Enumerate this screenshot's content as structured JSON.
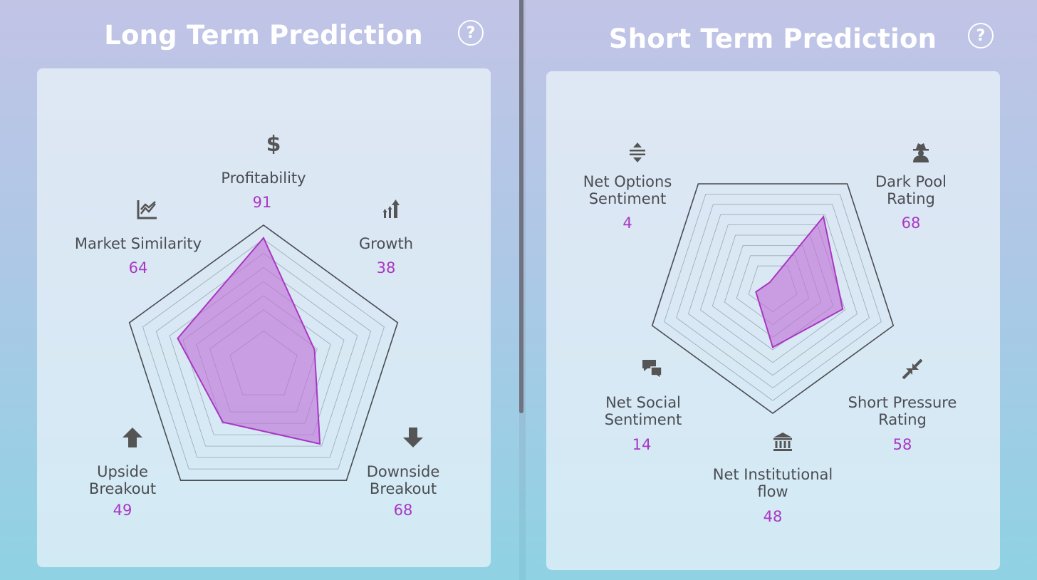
{
  "colors": {
    "accent": "#a937c4",
    "fill": "#c06fd6",
    "label": "#4a4c52",
    "grid": "#9aa8b3",
    "outer": "#4a4c52"
  },
  "help_label": "?",
  "chart_data": [
    {
      "type": "radar",
      "title": "Long Term Prediction",
      "range": [
        0,
        100
      ],
      "axes": [
        {
          "name": "Profitability",
          "lines": [
            "Profitability"
          ],
          "value": 91,
          "display": "91",
          "icon": "dollar-icon"
        },
        {
          "name": "Growth",
          "lines": [
            "Growth"
          ],
          "value": 38,
          "display": "38",
          "icon": "growth-arrows-icon"
        },
        {
          "name": "Downside Breakout",
          "lines": [
            "Downside",
            "Breakout"
          ],
          "value": 68,
          "display": "68",
          "icon": "arrow-down-icon"
        },
        {
          "name": "Upside Breakout",
          "lines": [
            "Upside",
            "Breakout"
          ],
          "value": 49,
          "display": "49",
          "icon": "arrow-up-icon"
        },
        {
          "name": "Market Similarity",
          "lines": [
            "Market Similarity"
          ],
          "value": 64,
          "display": "64",
          "icon": "line-chart-icon"
        }
      ]
    },
    {
      "type": "radar",
      "title": "Short Term Prediction",
      "range": [
        0,
        100
      ],
      "axes": [
        {
          "name": "Dark Pool Rating",
          "lines": [
            "Dark Pool",
            "Rating"
          ],
          "value": 68,
          "display": "68",
          "icon": "spy-icon"
        },
        {
          "name": "Short Pressure Rating",
          "lines": [
            "Short Pressure",
            "Rating"
          ],
          "value": 58,
          "display": "58",
          "icon": "compress-arrows-icon"
        },
        {
          "name": "Net Institutional flow",
          "lines": [
            "Net Institutional",
            "flow"
          ],
          "value": 48,
          "display": "48",
          "icon": "bank-icon"
        },
        {
          "name": "Net Social Sentiment",
          "lines": [
            "Net Social",
            "Sentiment"
          ],
          "value": 14,
          "display": "14",
          "icon": "chat-bubbles-icon"
        },
        {
          "name": "Net Options Sentiment",
          "lines": [
            "Net Options",
            "Sentiment"
          ],
          "value": 4,
          "display": "4",
          "icon": "sort-arrows-icon"
        }
      ]
    }
  ]
}
